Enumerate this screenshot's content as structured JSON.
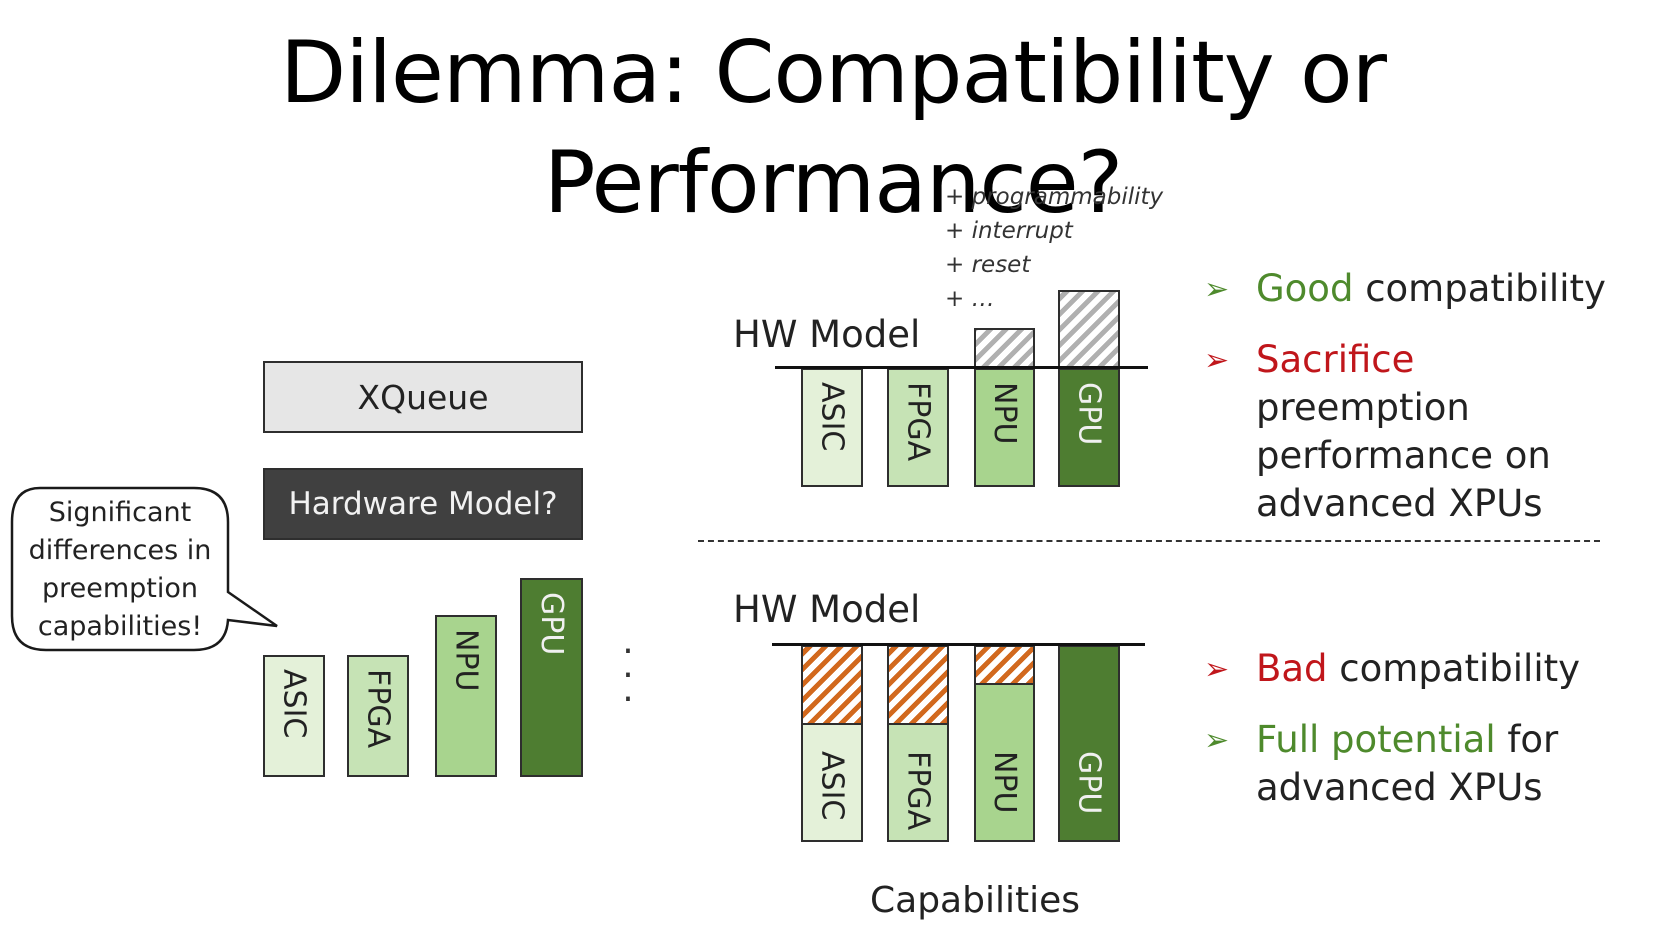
{
  "title": "Dilemma: Compatibility or Performance?",
  "stack": {
    "xqueue": "XQueue",
    "hardware_model": "Hardware Model?",
    "devices": [
      "ASIC",
      "FPGA",
      "NPU",
      "GPU"
    ],
    "ellipsis": ". . ."
  },
  "callout": "Significant differences in preemption capabilities!",
  "top_model": {
    "label": "HW Model",
    "devices": [
      "ASIC",
      "FPGA",
      "NPU",
      "GPU"
    ],
    "extras": [
      "+ programmability",
      "+ interrupt",
      "+ reset",
      "+ …"
    ]
  },
  "bottom_model": {
    "label": "HW Model",
    "devices": [
      "ASIC",
      "FPGA",
      "NPU",
      "GPU"
    ]
  },
  "x_caption": "Capabilities",
  "points_top": [
    {
      "highlight": "Good",
      "rest": " compatibility",
      "tone": "good"
    },
    {
      "highlight": "Sacrifice",
      "rest": " preemption performance on advanced XPUs",
      "tone": "bad"
    }
  ],
  "points_bottom": [
    {
      "highlight": "Bad",
      "rest": " compatibility",
      "tone": "bad"
    },
    {
      "highlight": "Full potential",
      "rest": " for advanced XPUs",
      "tone": "good"
    }
  ],
  "colors": {
    "good": "#4e8a2c",
    "bad": "#c0161b",
    "gpu": "#4e7d31",
    "npu": "#a8d48e",
    "fpga": "#c6e3b5",
    "asic": "#e4f1d9",
    "hatch": "#d2691e"
  }
}
